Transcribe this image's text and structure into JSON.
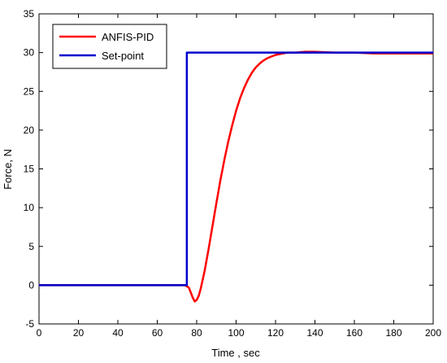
{
  "chart_data": {
    "type": "line",
    "xlabel": "Time , sec",
    "ylabel": "Force,  N",
    "xlim": [
      0,
      200
    ],
    "ylim": [
      -5,
      35
    ],
    "xticks": [
      0,
      20,
      40,
      60,
      80,
      100,
      120,
      140,
      160,
      180,
      200
    ],
    "yticks": [
      -5,
      0,
      5,
      10,
      15,
      20,
      25,
      30,
      35
    ],
    "grid": false,
    "legend_position": "top-left",
    "series": [
      {
        "name": "ANFIS-PID",
        "color": "#ff0000",
        "x": [
          0,
          74,
          76,
          78,
          79,
          80,
          81,
          82,
          84,
          86,
          88,
          90,
          92,
          94,
          96,
          98,
          100,
          102,
          104,
          106,
          108,
          110,
          112,
          114,
          116,
          118,
          120,
          122,
          124,
          126,
          128,
          130,
          135,
          140,
          150,
          160,
          170,
          180,
          190,
          200
        ],
        "y": [
          0,
          0,
          -0.3,
          -1.6,
          -2.1,
          -1.9,
          -1.4,
          -0.5,
          1.8,
          4.6,
          7.6,
          10.6,
          13.5,
          16.1,
          18.5,
          20.6,
          22.5,
          24.1,
          25.4,
          26.5,
          27.4,
          28.1,
          28.6,
          29.0,
          29.3,
          29.5,
          29.7,
          29.8,
          29.9,
          30.0,
          30.0,
          30.0,
          30.1,
          30.1,
          30.0,
          30.0,
          29.9,
          29.9,
          29.9,
          29.9
        ]
      },
      {
        "name": "Set-point",
        "color": "#0000cc",
        "x": [
          0,
          75,
          75,
          200
        ],
        "y": [
          0,
          0,
          30,
          30
        ]
      }
    ]
  }
}
